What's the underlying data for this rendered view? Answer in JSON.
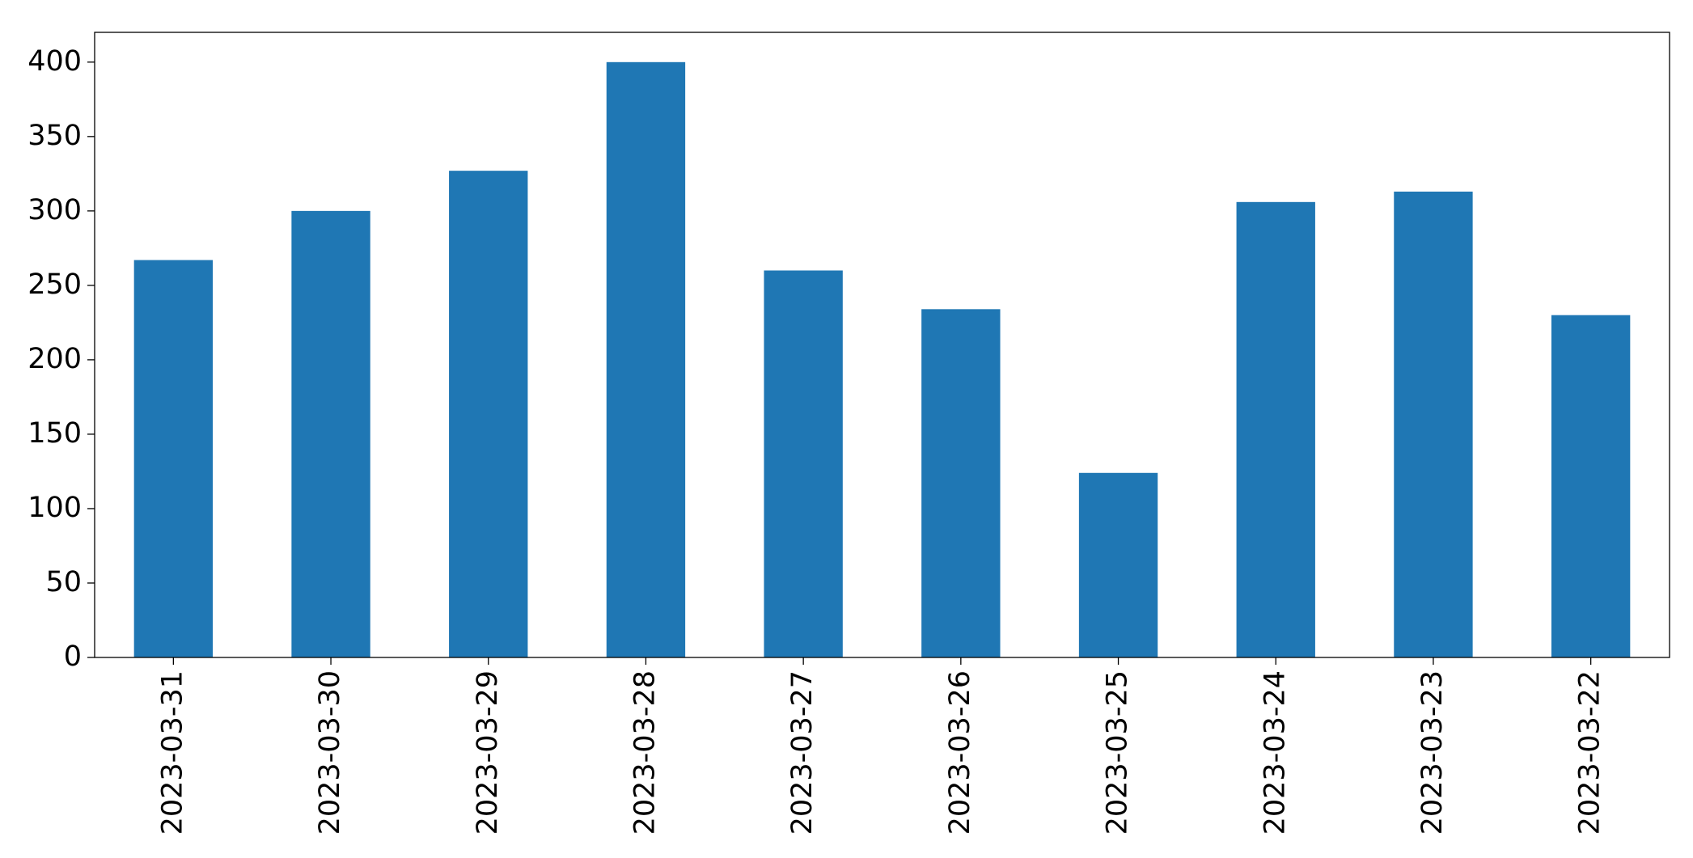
{
  "chart_data": {
    "type": "bar",
    "categories": [
      "2023-03-31",
      "2023-03-30",
      "2023-03-29",
      "2023-03-28",
      "2023-03-27",
      "2023-03-26",
      "2023-03-25",
      "2023-03-24",
      "2023-03-23",
      "2023-03-22"
    ],
    "values": [
      267,
      300,
      327,
      400,
      260,
      234,
      124,
      306,
      313,
      230
    ],
    "color": "#1f77b4",
    "ylim": [
      0,
      420
    ],
    "yticks": [
      0,
      50,
      100,
      150,
      200,
      250,
      300,
      350,
      400
    ],
    "grid": false
  }
}
